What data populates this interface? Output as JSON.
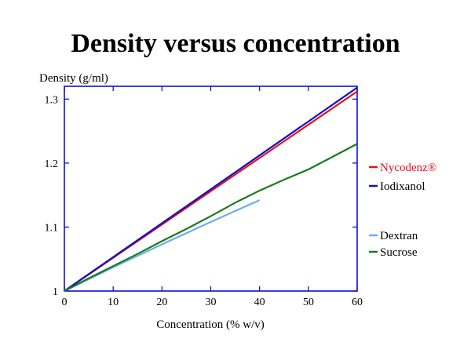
{
  "chart_data": {
    "type": "line",
    "title": "Density versus concentration",
    "xlabel": "Concentration (% w/v)",
    "ylabel": "Density (g/ml)",
    "xlim": [
      0,
      60
    ],
    "ylim": [
      1,
      1.3
    ],
    "xticks": [
      "0",
      "10",
      "20",
      "30",
      "40",
      "50",
      "60"
    ],
    "yticks": [
      "1",
      "1.1",
      "1.2",
      "1.3"
    ],
    "grid": false,
    "legend_position": "right",
    "axis_color": "#0000cc",
    "series": [
      {
        "name": "Nycodenz®",
        "color": "#e8101a",
        "x": [
          0,
          10,
          20,
          30,
          40,
          50,
          60
        ],
        "y": [
          1.0,
          1.052,
          1.104,
          1.156,
          1.208,
          1.26,
          1.312
        ]
      },
      {
        "name": "Iodixanol",
        "color": "#1010c8",
        "x": [
          0,
          10,
          20,
          30,
          40,
          50,
          60
        ],
        "y": [
          1.0,
          1.053,
          1.106,
          1.159,
          1.212,
          1.265,
          1.318
        ]
      },
      {
        "name": "Dextran",
        "color": "#6aaef0",
        "x": [
          0,
          10,
          20,
          30,
          40
        ],
        "y": [
          1.0,
          1.037,
          1.073,
          1.108,
          1.142
        ]
      },
      {
        "name": "Sucrose",
        "color": "#1a7a1a",
        "x": [
          0,
          5,
          10,
          15,
          20,
          25,
          30,
          35,
          40,
          45,
          50,
          55,
          60
        ],
        "y": [
          1.0,
          1.02,
          1.039,
          1.058,
          1.078,
          1.097,
          1.117,
          1.138,
          1.157,
          1.174,
          1.19,
          1.21,
          1.23
        ]
      }
    ]
  }
}
